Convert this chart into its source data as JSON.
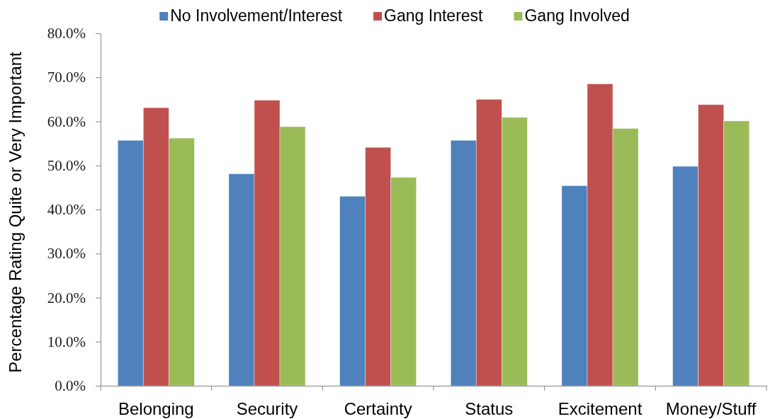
{
  "chart_data": {
    "type": "bar",
    "ylabel": "Percentage Rating Quite or Very Important",
    "categories": [
      "Belonging",
      "Security",
      "Certainty",
      "Status",
      "Excitement",
      "Money/Stuff"
    ],
    "series": [
      {
        "name": "No Involvement/Interest",
        "color": "#4f81bd",
        "values": [
          55.7,
          48.1,
          43.0,
          55.7,
          45.4,
          49.8
        ]
      },
      {
        "name": "Gang Interest",
        "color": "#c0504d",
        "values": [
          63.1,
          64.8,
          54.1,
          65.0,
          68.5,
          63.8
        ]
      },
      {
        "name": "Gang Involved",
        "color": "#9bbb59",
        "values": [
          56.2,
          58.8,
          47.3,
          60.9,
          58.4,
          60.1
        ]
      }
    ],
    "ylim": [
      0,
      80
    ],
    "yticks": [
      {
        "value": 0,
        "label": "0.0%"
      },
      {
        "value": 10,
        "label": "10.0%"
      },
      {
        "value": 20,
        "label": "20.0%"
      },
      {
        "value": 30,
        "label": "30.0%"
      },
      {
        "value": 40,
        "label": "40.0%"
      },
      {
        "value": 50,
        "label": "50.0%"
      },
      {
        "value": 60,
        "label": "60.0%"
      },
      {
        "value": 70,
        "label": "70.0%"
      },
      {
        "value": 80,
        "label": "80.0%"
      }
    ],
    "legend": "top"
  }
}
